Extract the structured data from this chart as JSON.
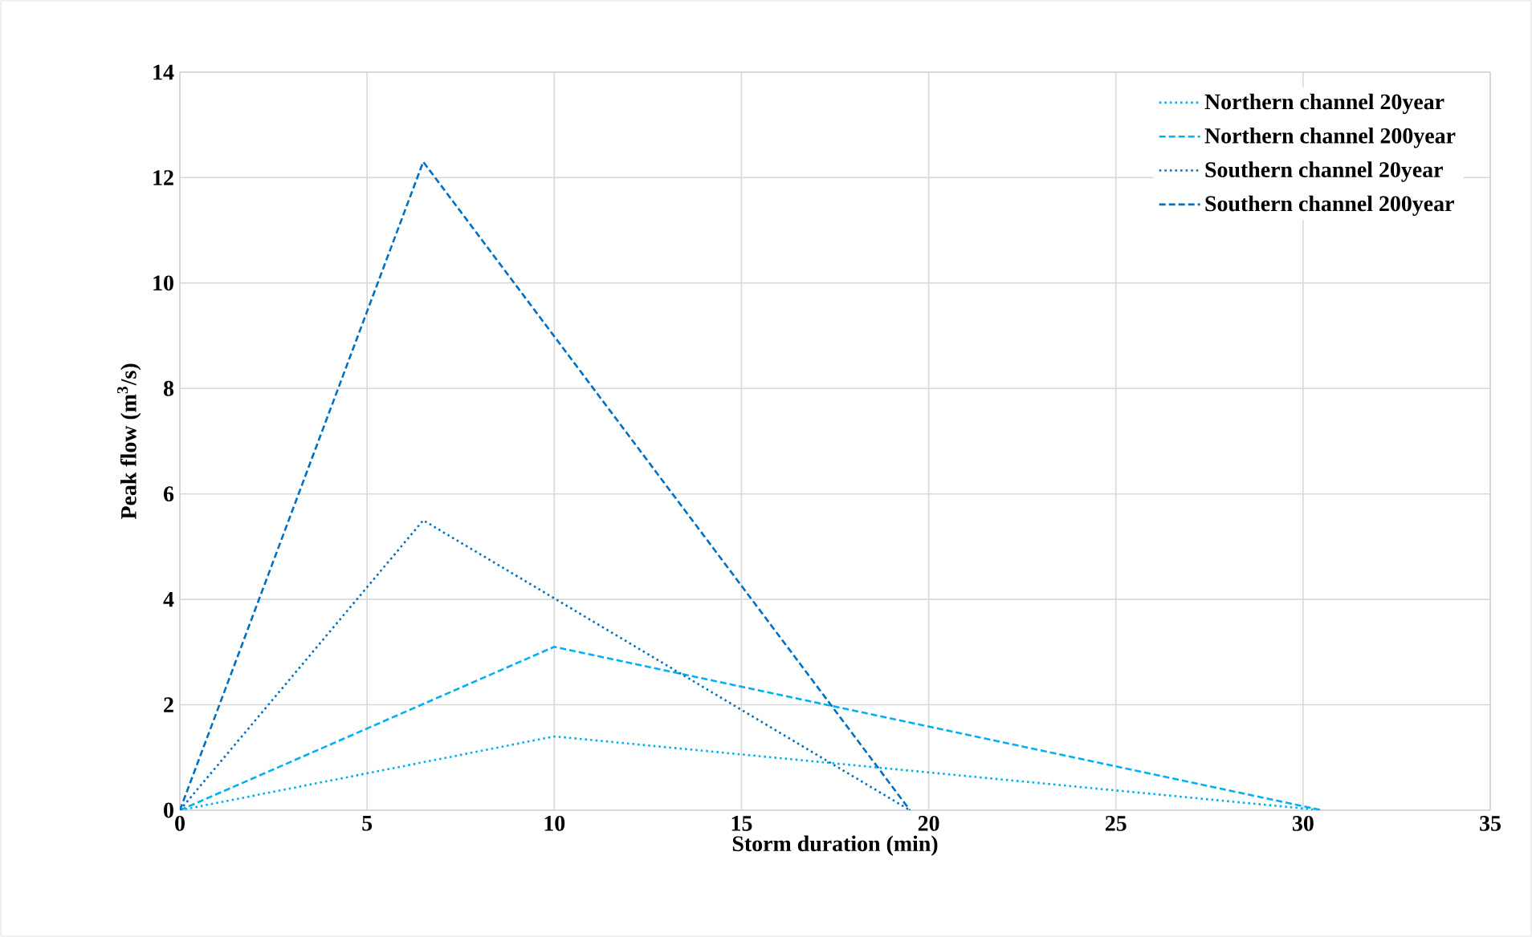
{
  "chart_data": {
    "type": "line",
    "xlabel": "Storm duration (min)",
    "ylabel": "Peak flow (m$^{3}$/s)",
    "xlim": [
      0,
      35
    ],
    "xticks": [
      0,
      5,
      10,
      15,
      20,
      25,
      30,
      35
    ],
    "ylim": [
      0,
      14
    ],
    "yticks": [
      0,
      2,
      4,
      6,
      8,
      10,
      12,
      14
    ],
    "grid": true,
    "legend": "top right",
    "series": [
      {
        "name": "Northern channel 20year",
        "color": "#00b0f0",
        "line_style": "dotted",
        "x": [
          0,
          10,
          30.5
        ],
        "values": [
          0,
          1.4,
          0
        ]
      },
      {
        "name": "Northern channel 200year",
        "color": "#00b0f0",
        "line_style": "dashed",
        "x": [
          0,
          10,
          30.5
        ],
        "values": [
          0,
          3.1,
          0
        ]
      },
      {
        "name": "Southern channel 20year",
        "color": "#0070c0",
        "line_style": "dotted",
        "x": [
          0,
          6.5,
          19.5
        ],
        "values": [
          0,
          5.5,
          0
        ]
      },
      {
        "name": "Southern channel 200year",
        "color": "#0070c0",
        "line_style": "dashed",
        "x": [
          0,
          6.5,
          19.5
        ],
        "values": [
          0,
          12.3,
          0
        ]
      }
    ]
  }
}
